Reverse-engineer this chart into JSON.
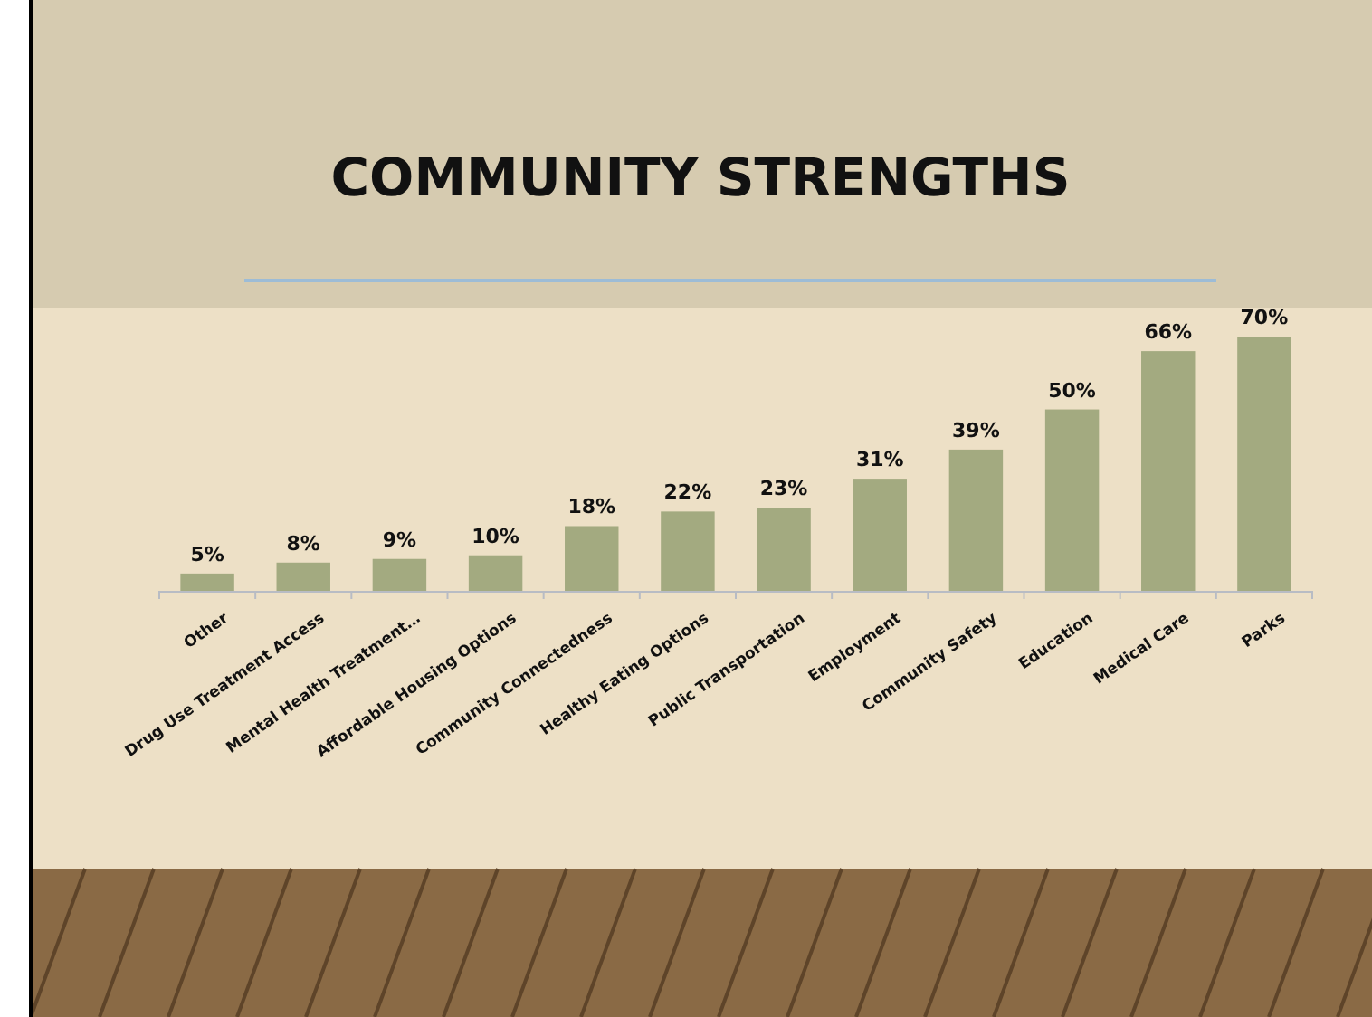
{
  "chart_data": {
    "type": "bar",
    "title": "COMMUNITY STRENGTHS",
    "categories": [
      "Other",
      "Drug Use Treatment Access",
      "Mental Health Treatment…",
      "Affordable Housing Options",
      "Community Connectedness",
      "Healthy Eating Options",
      "Public Transportation",
      "Employment",
      "Community Safety",
      "Education",
      "Medical Care",
      "Parks"
    ],
    "values": [
      5,
      8,
      9,
      10,
      18,
      22,
      23,
      31,
      39,
      50,
      66,
      70
    ],
    "value_labels": [
      "5%",
      "8%",
      "9%",
      "10%",
      "18%",
      "22%",
      "23%",
      "31%",
      "39%",
      "50%",
      "66%",
      "70%"
    ],
    "color": "#a3aa80"
  }
}
